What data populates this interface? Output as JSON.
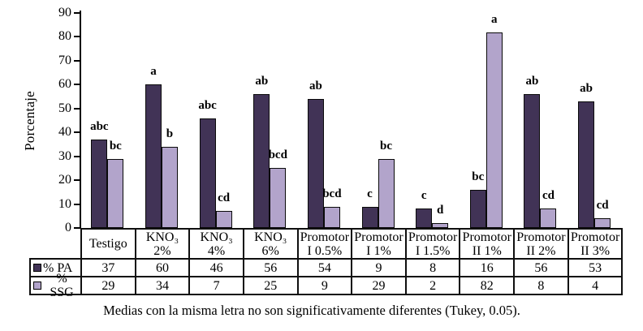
{
  "chart_data": {
    "type": "bar",
    "title": "",
    "xlabel": "",
    "ylabel": "Porcentaje",
    "ylim": [
      0,
      90
    ],
    "ytick_step": 10,
    "grid": false,
    "legend_position": "table-rows-left",
    "categories": [
      "Testigo",
      "KNO₃ 2%",
      "KNO₃ 4%",
      "KNO₃ 6%",
      "Promotor I 0.5%",
      "Promotor I 1%",
      "Promotor I 1.5%",
      "Promotor II 1%",
      "Promotor II 2%",
      "Promotor II 3%"
    ],
    "category_label_lines": [
      [
        "Testigo"
      ],
      [
        "KNO₃",
        "2%"
      ],
      [
        "KNO₃",
        "4%"
      ],
      [
        "KNO₃",
        "6%"
      ],
      [
        "Promotor",
        "I 0.5%"
      ],
      [
        "Promotor",
        "I 1%"
      ],
      [
        "Promotor",
        "I 1.5%"
      ],
      [
        "Promotor",
        "II 1%"
      ],
      [
        "Promotor",
        "II 2%"
      ],
      [
        "Promotor",
        "II 3%"
      ]
    ],
    "series": [
      {
        "name": "% PA",
        "color": "#413356",
        "values": [
          37,
          60,
          46,
          56,
          54,
          9,
          8,
          16,
          56,
          53
        ],
        "significance_letters": [
          "abc",
          "a",
          "abc",
          "ab",
          "ab",
          "c",
          "c",
          "bc",
          "ab",
          "ab"
        ]
      },
      {
        "name": "% SSG",
        "color": "#B2A4CB",
        "values": [
          29,
          34,
          7,
          25,
          9,
          29,
          2,
          82,
          8,
          4
        ],
        "significance_letters": [
          "bc",
          "b",
          "cd",
          "bcd",
          "bcd",
          "bc",
          "d",
          "a",
          "cd",
          "cd"
        ]
      }
    ]
  },
  "caption": "Medias con la misma letra no son significativamente diferentes (Tukey, 0.05)."
}
